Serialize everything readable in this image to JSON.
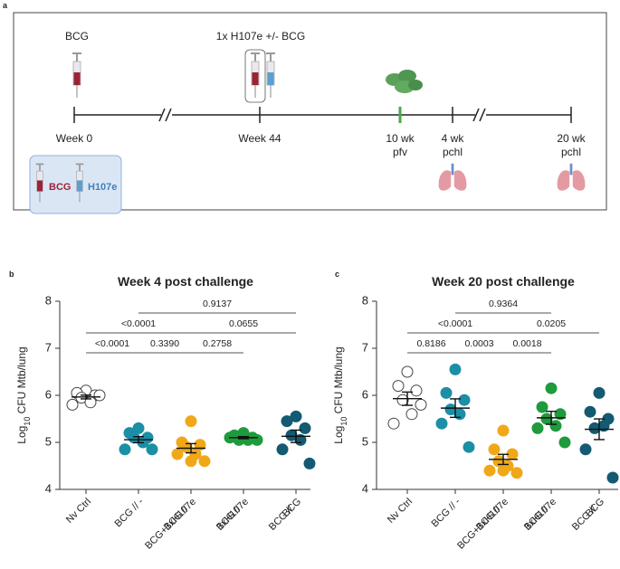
{
  "panel_labels": [
    "a",
    "b",
    "c"
  ],
  "timeline": {
    "top_labels": [
      "BCG",
      "1x H107e +/- BCG"
    ],
    "milestones": [
      [
        "Week 0"
      ],
      [
        "Week 44"
      ],
      [
        "10 wk",
        "pfv"
      ],
      [
        "4 wk",
        "pchl"
      ],
      [
        "20 wk",
        "pchl"
      ]
    ],
    "legend": [
      "BCG",
      "H107e"
    ]
  },
  "chart_data": [
    {
      "type": "dot",
      "title": "Week 4 post challenge",
      "ylabel": [
        "Log",
        "10",
        " CFU Mtb/lung"
      ],
      "categories": [
        [
          "Nv Ctrl"
        ],
        [
          "BCG // -"
        ],
        [
          "BCG //",
          "BCG+1xH107e"
        ],
        [
          "BCG //",
          "1xH107e"
        ],
        [
          "BCG //",
          "BCG"
        ]
      ],
      "colors": [
        "#ffffff",
        "#1b8fa6",
        "#f0a818",
        "#1f9a3c",
        "#135a72"
      ],
      "values": [
        [
          6.1,
          6.05,
          6.0,
          5.95,
          5.85,
          5.8,
          6.0
        ],
        [
          5.3,
          5.2,
          5.1,
          5.1,
          5.0,
          4.85,
          4.85
        ],
        [
          5.45,
          5.0,
          4.95,
          4.9,
          4.75,
          4.75,
          4.6,
          4.6
        ],
        [
          5.2,
          5.15,
          5.1,
          5.05,
          5.05,
          5.1,
          5.05
        ],
        [
          5.55,
          5.45,
          5.3,
          5.15,
          5.05,
          4.85,
          4.55
        ]
      ],
      "comparisons": [
        {
          "from": 0,
          "to": 1,
          "label": "<0.0001"
        },
        {
          "from": 1,
          "to": 2,
          "label": "0.3390"
        },
        {
          "from": 2,
          "to": 3,
          "label": "0.2758"
        },
        {
          "from": 0,
          "to": 2,
          "label": "<0.0001"
        },
        {
          "from": 2,
          "to": 4,
          "label": "0.0655"
        },
        {
          "from": 1,
          "to": 4,
          "label": "0.9137"
        }
      ],
      "ylim": [
        4,
        8
      ],
      "yticks": [
        4,
        5,
        6,
        7,
        8
      ]
    },
    {
      "type": "dot",
      "title": "Week 20 post challenge",
      "ylabel": [
        "Log",
        "10",
        " CFU Mtb/lung"
      ],
      "categories": [
        [
          "Nv Ctrl"
        ],
        [
          "BCG // -"
        ],
        [
          "BCG //",
          "BCG+1xH107e"
        ],
        [
          "BCG //",
          "1xH107e"
        ],
        [
          "BCG //",
          "BCG"
        ]
      ],
      "colors": [
        "#ffffff",
        "#1b8fa6",
        "#f0a818",
        "#1f9a3c",
        "#135a72"
      ],
      "values": [
        [
          6.5,
          6.2,
          6.1,
          5.9,
          5.6,
          5.4,
          5.8
        ],
        [
          6.55,
          6.05,
          5.9,
          5.7,
          5.6,
          5.4,
          4.9
        ],
        [
          5.25,
          4.85,
          4.75,
          4.6,
          4.5,
          4.4,
          4.35,
          4.4
        ],
        [
          6.15,
          5.75,
          5.6,
          5.5,
          5.35,
          5.3,
          5.0
        ],
        [
          6.05,
          5.65,
          5.5,
          5.3,
          5.35,
          4.85,
          4.25
        ]
      ],
      "comparisons": [
        {
          "from": 0,
          "to": 1,
          "label": "0.8186"
        },
        {
          "from": 1,
          "to": 2,
          "label": "0.0003"
        },
        {
          "from": 2,
          "to": 3,
          "label": "0.0018"
        },
        {
          "from": 0,
          "to": 2,
          "label": "<0.0001"
        },
        {
          "from": 2,
          "to": 4,
          "label": "0.0205"
        },
        {
          "from": 1,
          "to": 3,
          "label": "0.9364"
        }
      ],
      "ylim": [
        4,
        8
      ],
      "yticks": [
        4,
        5,
        6,
        7,
        8
      ]
    }
  ]
}
